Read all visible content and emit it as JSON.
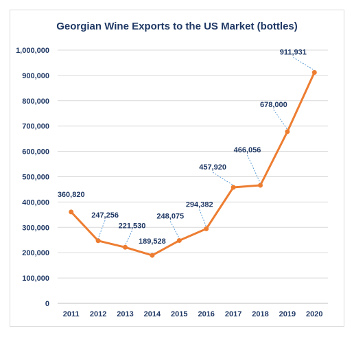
{
  "chart_data": {
    "type": "line",
    "title": "Georgian Wine Exports to the US Market (bottles)",
    "categories": [
      "2011",
      "2012",
      "2013",
      "2014",
      "2015",
      "2016",
      "2017",
      "2018",
      "2019",
      "2020"
    ],
    "series": [
      {
        "values": [
          360820,
          247256,
          221530,
          189528,
          248075,
          294382,
          457920,
          466056,
          678000,
          911931
        ]
      }
    ],
    "data_labels": [
      "360,820",
      "247,256",
      "221,530",
      "189,528",
      "248,075",
      "294,382",
      "457,920",
      "466,056",
      "678,000",
      "911,931"
    ],
    "y_tick_labels": [
      "0",
      "100,000",
      "200,000",
      "300,000",
      "400,000",
      "500,000",
      "600,000",
      "700,000",
      "800,000",
      "900,000",
      "1,000,000"
    ],
    "ylim": [
      0,
      1000000
    ],
    "grid": true,
    "legend": "none",
    "colors": {
      "line": "#ed7d31",
      "text": "#1f3864",
      "grid": "#d9d9d9",
      "leader": "#5b9bd5"
    }
  }
}
